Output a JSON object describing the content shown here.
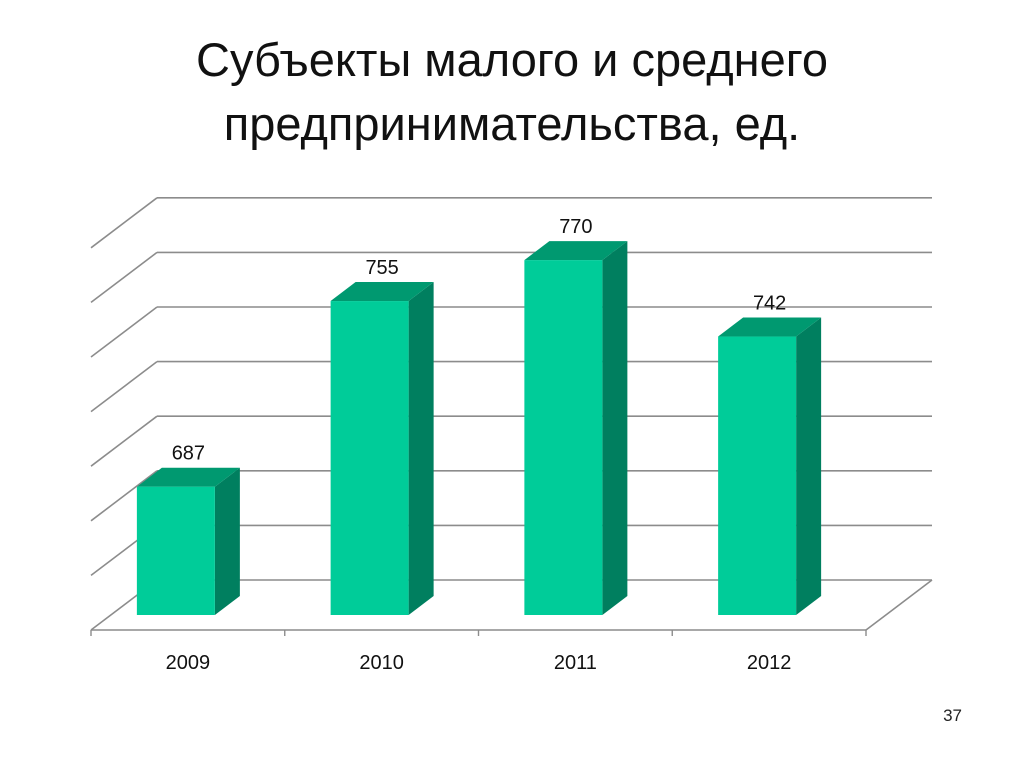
{
  "slide": {
    "title_line1": "Субъекты малого и среднего",
    "title_line2": "предпринимательства, ед.",
    "page_number": "37"
  },
  "chart_data": {
    "type": "bar",
    "style": "3d-column",
    "categories": [
      "2009",
      "2010",
      "2011",
      "2012"
    ],
    "values": [
      687,
      755,
      770,
      742
    ],
    "data_labels": [
      "687",
      "755",
      "770",
      "742"
    ],
    "title": "",
    "xlabel": "",
    "ylabel": "",
    "ylim": [
      640,
      780
    ],
    "y_axis_labels_shown": false,
    "grid": true,
    "legend": false
  },
  "colors": {
    "bar_front": "#00CC99",
    "bar_side": "#007F5F",
    "bar_top": "#009970",
    "gridline": "#8C8C8C",
    "text": "#111111"
  }
}
